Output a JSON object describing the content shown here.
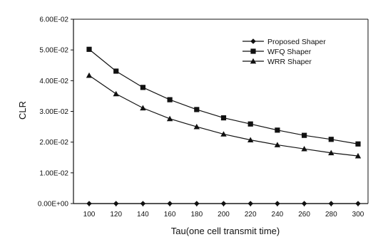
{
  "chart_data": {
    "type": "line",
    "xlabel": "Tau(one cell transmit time)",
    "ylabel": "CLR",
    "x": [
      100,
      120,
      140,
      160,
      180,
      200,
      220,
      240,
      260,
      280,
      300
    ],
    "ylim": [
      0,
      0.06
    ],
    "yticks": [
      0,
      0.01,
      0.02,
      0.03,
      0.04,
      0.05,
      0.06
    ],
    "ytick_labels": [
      "0.00E+00",
      "1.00E-02",
      "2.00E-02",
      "3.00E-02",
      "4.00E-02",
      "5.00E-02",
      "6.00E-02"
    ],
    "grid": false,
    "legend_position": "top-right",
    "series": [
      {
        "name": "Proposed Shaper",
        "marker": "diamond",
        "values": [
          0,
          0,
          0,
          0,
          0,
          0,
          0,
          0,
          0,
          0,
          0
        ]
      },
      {
        "name": "WFQ Shaper",
        "marker": "square",
        "values": [
          0.0502,
          0.0431,
          0.0378,
          0.0338,
          0.0306,
          0.0279,
          0.0259,
          0.0239,
          0.0222,
          0.0209,
          0.0194
        ]
      },
      {
        "name": "WRR Shaper",
        "marker": "triangle",
        "values": [
          0.0417,
          0.0357,
          0.0311,
          0.0276,
          0.025,
          0.0226,
          0.0207,
          0.0191,
          0.0178,
          0.0165,
          0.0155
        ]
      }
    ]
  }
}
